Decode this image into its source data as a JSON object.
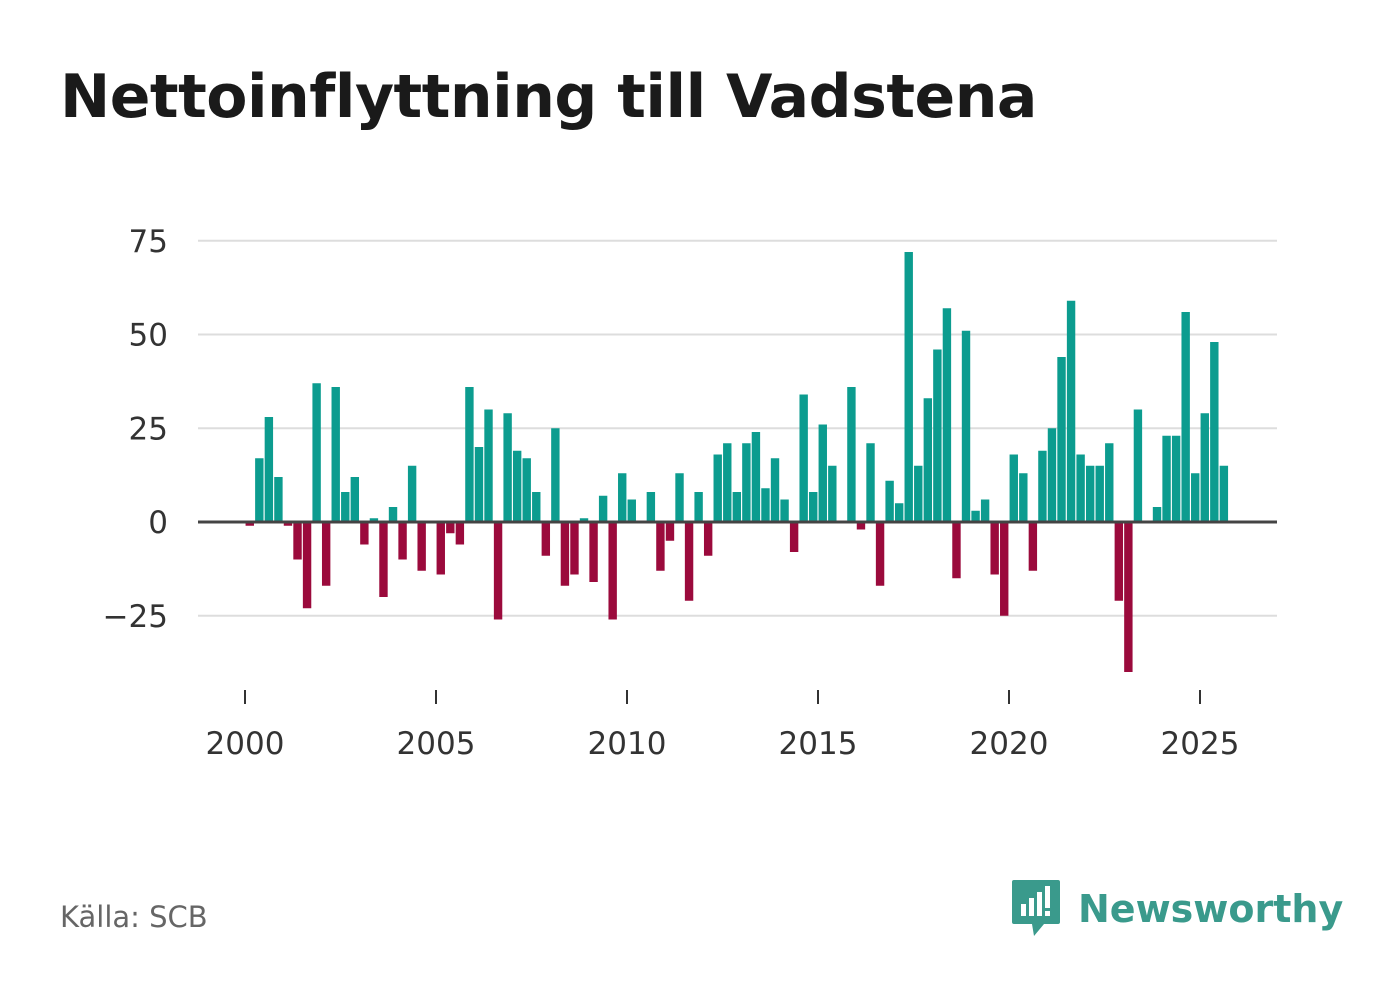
{
  "colors": {
    "positive": "#0c9c8f",
    "negative": "#9b0a3c",
    "grid": "#dddddd",
    "zero_line": "#444444",
    "brand": "#3a9a8c"
  },
  "source": "Källa: SCB",
  "brand": {
    "name": "Newsworthy",
    "icon": "newsworthy-logo-icon"
  },
  "chart_data": {
    "type": "bar",
    "title": "Nettoinflyttning till Vadstena",
    "xlabel": "",
    "ylabel": "",
    "ylim": [
      -40,
      75
    ],
    "xlim": [
      1998.7,
      2027
    ],
    "yticks": [
      75,
      50,
      25,
      0,
      -25
    ],
    "ytick_labels": [
      "75",
      "50",
      "25",
      "0",
      "−25"
    ],
    "xticks": [
      2000,
      2005,
      2010,
      2015,
      2020,
      2025
    ],
    "xtick_labels": [
      "2000",
      "2005",
      "2010",
      "2015",
      "2020",
      "2025"
    ],
    "period": "quarterly",
    "x_start": 2000.125,
    "x_step": 0.25,
    "values": [
      -1,
      17,
      28,
      12,
      -1,
      -10,
      -23,
      37,
      -17,
      36,
      8,
      12,
      -6,
      1,
      -20,
      4,
      -10,
      15,
      -13,
      0,
      -14,
      -3,
      -6,
      36,
      20,
      30,
      -26,
      29,
      19,
      17,
      8,
      -9,
      25,
      -17,
      -14,
      1,
      -16,
      7,
      -26,
      13,
      6,
      0,
      8,
      -13,
      -5,
      13,
      -21,
      8,
      -9,
      18,
      21,
      8,
      21,
      24,
      9,
      17,
      6,
      -8,
      34,
      8,
      26,
      15,
      0,
      36,
      -2,
      21,
      -17,
      11,
      5,
      72,
      15,
      33,
      46,
      57,
      -15,
      51,
      3,
      6,
      -14,
      -25,
      18,
      13,
      -13,
      19,
      25,
      44,
      59,
      18,
      15,
      15,
      21,
      -21,
      -40,
      30,
      0,
      4,
      23,
      23,
      56,
      13,
      29,
      48,
      15
    ]
  }
}
